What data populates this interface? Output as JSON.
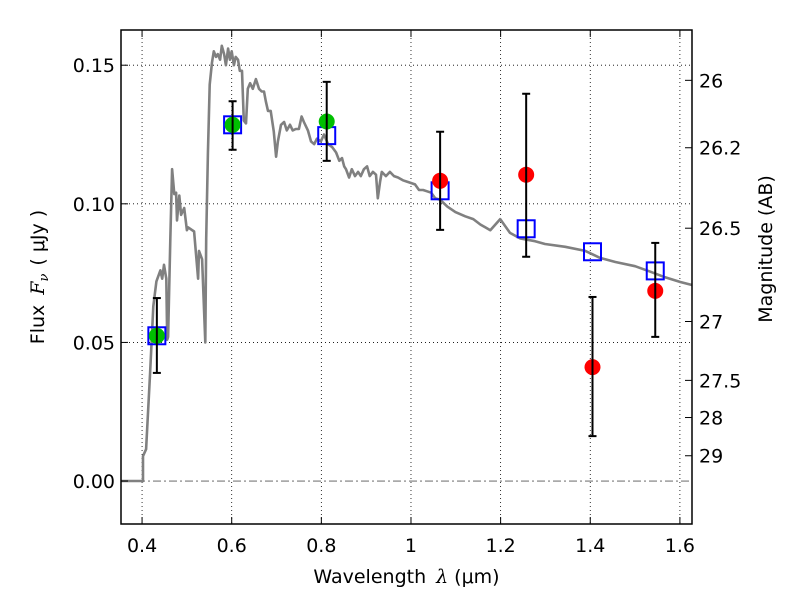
{
  "chart_data": {
    "type": "scatter",
    "title": "",
    "xlabel": "Wavelength",
    "xlabel_symbol": "λ",
    "xlabel_unit": "(μm)",
    "ylabel": "Flux",
    "ylabel_symbol": "F",
    "ylabel_subscript": "ν",
    "ylabel_unit": "( μJy )",
    "y2label": "Magnitude (AB)",
    "xlim": [
      0.353,
      1.627
    ],
    "ylim": [
      -0.0155,
      0.1627
    ],
    "grid": true,
    "x_ticks": [
      0.4,
      0.6,
      0.8,
      1.0,
      1.2,
      1.4,
      1.6
    ],
    "x_tick_labels": [
      "0.4",
      "0.6",
      "0.8",
      "1",
      "1.2",
      "1.4",
      "1.6"
    ],
    "y_ticks": [
      0.0,
      0.05,
      0.1,
      0.15
    ],
    "y_tick_labels": [
      "0.00",
      "0.05",
      "0.10",
      "0.15"
    ],
    "y2_ticks": [
      26,
      26.2,
      26.5,
      27,
      27.5,
      28,
      29
    ],
    "y2_tick_labels": [
      "26",
      "26.2",
      "26.5",
      "27",
      "27.5",
      "28",
      "29"
    ],
    "y2_zeropoint_ab": 23.9,
    "zero_line": {
      "y": 0.0,
      "style": "dash-dot"
    },
    "colors": {
      "model": "#808080",
      "model_photometry": "#0000ff",
      "hst_detection": "#00bf00",
      "other_detection": "#ff0000",
      "errorbar": "#000000"
    },
    "series": [
      {
        "name": "model spectrum",
        "kind": "line",
        "x": [
          0.353,
          0.402,
          0.402,
          0.409,
          0.418,
          0.425,
          0.432,
          0.441,
          0.445,
          0.449,
          0.454,
          0.456,
          0.458,
          0.463,
          0.467,
          0.472,
          0.476,
          0.478,
          0.483,
          0.487,
          0.494,
          0.5,
          0.503,
          0.516,
          0.525,
          0.527,
          0.534,
          0.541,
          0.543,
          0.547,
          0.551,
          0.556,
          0.56,
          0.565,
          0.569,
          0.574,
          0.578,
          0.583,
          0.587,
          0.592,
          0.596,
          0.6,
          0.605,
          0.609,
          0.614,
          0.618,
          0.623,
          0.627,
          0.632,
          0.636,
          0.641,
          0.647,
          0.654,
          0.661,
          0.667,
          0.672,
          0.676,
          0.681,
          0.687,
          0.694,
          0.699,
          0.703,
          0.71,
          0.717,
          0.723,
          0.73,
          0.736,
          0.743,
          0.75,
          0.756,
          0.761,
          0.77,
          0.777,
          0.784,
          0.79,
          0.799,
          0.806,
          0.815,
          0.824,
          0.833,
          0.84,
          0.846,
          0.851,
          0.855,
          0.862,
          0.868,
          0.875,
          0.882,
          0.888,
          0.895,
          0.902,
          0.908,
          0.915,
          0.922,
          0.926,
          0.931,
          0.935,
          0.944,
          0.953,
          0.962,
          0.971,
          0.982,
          0.991,
          1.0,
          1.009,
          1.018,
          1.027,
          1.036,
          1.045,
          1.054,
          1.065,
          1.081,
          1.099,
          1.121,
          1.139,
          1.155,
          1.166,
          1.177,
          1.199,
          1.221,
          1.244,
          1.277,
          1.299,
          1.344,
          1.389,
          1.422,
          1.456,
          1.5,
          1.534,
          1.567,
          1.601,
          1.627
        ],
        "y": [
          0.0,
          0.0,
          0.009,
          0.0115,
          0.039,
          0.063,
          0.072,
          0.076,
          0.073,
          0.078,
          0.073,
          0.051,
          0.052,
          0.087,
          0.1125,
          0.1035,
          0.104,
          0.094,
          0.103,
          0.096,
          0.0985,
          0.0905,
          0.0915,
          0.09,
          0.073,
          0.083,
          0.08,
          0.05,
          0.0875,
          0.118,
          0.143,
          0.151,
          0.155,
          0.153,
          0.154,
          0.152,
          0.157,
          0.154,
          0.15,
          0.156,
          0.152,
          0.155,
          0.15,
          0.153,
          0.152,
          0.148,
          0.148,
          0.13,
          0.129,
          0.1415,
          0.1435,
          0.1415,
          0.145,
          0.1415,
          0.1405,
          0.1405,
          0.137,
          0.1335,
          0.1335,
          0.126,
          0.117,
          0.1225,
          0.1285,
          0.1295,
          0.1265,
          0.1285,
          0.1265,
          0.127,
          0.127,
          0.1315,
          0.1295,
          0.1265,
          0.1225,
          0.1215,
          0.1235,
          0.1225,
          0.125,
          0.1215,
          0.1205,
          0.1185,
          0.1155,
          0.1165,
          0.1135,
          0.1125,
          0.1095,
          0.1125,
          0.11,
          0.1115,
          0.11,
          0.1125,
          0.1135,
          0.11,
          0.1115,
          0.1105,
          0.102,
          0.108,
          0.1115,
          0.11,
          0.1115,
          0.11,
          0.1095,
          0.1085,
          0.108,
          0.1075,
          0.107,
          0.105,
          0.105,
          0.1045,
          0.104,
          0.102,
          0.1015,
          0.099,
          0.097,
          0.0955,
          0.0945,
          0.0925,
          0.0915,
          0.0905,
          0.0945,
          0.0895,
          0.0875,
          0.0865,
          0.0855,
          0.0845,
          0.083,
          0.0805,
          0.079,
          0.0775,
          0.0755,
          0.0735,
          0.0718,
          0.0707
        ]
      },
      {
        "name": "model photometry",
        "kind": "marker",
        "marker": "open-square",
        "x": [
          0.433,
          0.602,
          0.812,
          1.065,
          1.257,
          1.405,
          1.545
        ],
        "y": [
          0.0524,
          0.1285,
          0.1246,
          0.1047,
          0.091,
          0.0827,
          0.0758
        ]
      },
      {
        "name": "observed flux (green)",
        "kind": "marker",
        "marker": "filled-circle",
        "x": [
          0.433,
          0.602,
          0.812
        ],
        "y": [
          0.0524,
          0.1285,
          0.1297
        ],
        "yerr_low": [
          0.039,
          0.1195,
          0.1155
        ],
        "yerr_high": [
          0.066,
          0.137,
          0.144
        ]
      },
      {
        "name": "observed flux (red)",
        "kind": "marker",
        "marker": "filled-circle",
        "x": [
          1.065,
          1.257,
          1.405,
          1.545
        ],
        "y": [
          0.1083,
          0.1105,
          0.0411,
          0.0686
        ],
        "yerr_low": [
          0.0906,
          0.0809,
          0.0162,
          0.052
        ],
        "yerr_high": [
          0.126,
          0.1397,
          0.0664,
          0.0859
        ]
      }
    ]
  }
}
